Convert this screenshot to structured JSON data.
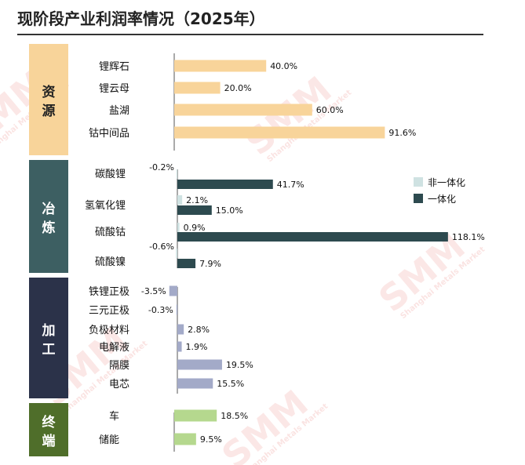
{
  "title": "现阶段产业利润率情况（2025年）",
  "watermark": {
    "main": "SMM",
    "sub": "Shanghai Metals Market"
  },
  "chart_data": {
    "type": "bar",
    "orientation": "horizontal",
    "title": "现阶段产业利润率情况（2025年）",
    "unit": "%",
    "legend": {
      "position": "right",
      "entries": [
        "非一体化",
        "一体化"
      ]
    },
    "colors": {
      "资源": "#f8d49a",
      "冶炼_非一体化": "#cfe2e2",
      "冶炼_一体化": "#2d4a4f",
      "加工": "#a3aac8",
      "终端": "#b5d88e",
      "seg_资源": "#f8d49a",
      "seg_冶炼": "#3d5f62",
      "seg_加工": "#2b3249",
      "seg_终端": "#4f6e2a"
    },
    "segments": [
      {
        "name": "资源",
        "chars": [
          "资",
          "源"
        ],
        "items": [
          {
            "category": "锂辉石",
            "value": 40.0,
            "label": "40.0%"
          },
          {
            "category": "锂云母",
            "value": 20.0,
            "label": "20.0%"
          },
          {
            "category": "盐湖",
            "value": 60.0,
            "label": "60.0%"
          },
          {
            "category": "钴中间品",
            "value": 91.6,
            "label": "91.6%"
          }
        ]
      },
      {
        "name": "冶炼",
        "chars": [
          "冶",
          "炼"
        ],
        "series": [
          "非一体化",
          "一体化"
        ],
        "items": [
          {
            "category": "碳酸锂",
            "values": [
              -0.2,
              41.7
            ],
            "labels": [
              "-0.2%",
              "41.7%"
            ]
          },
          {
            "category": "氢氧化锂",
            "values": [
              2.1,
              15.0
            ],
            "labels": [
              "2.1%",
              "15.0%"
            ]
          },
          {
            "category": "硫酸钴",
            "values": [
              0.9,
              118.1
            ],
            "labels": [
              "0.9%",
              "118.1%"
            ]
          },
          {
            "category": "硫酸镍",
            "values": [
              -0.6,
              7.9
            ],
            "labels": [
              "-0.6%",
              "7.9%"
            ]
          }
        ]
      },
      {
        "name": "加工",
        "chars": [
          "加",
          "工"
        ],
        "items": [
          {
            "category": "铁锂正极",
            "value": -3.5,
            "label": "-3.5%"
          },
          {
            "category": "三元正极",
            "value": -0.3,
            "label": "-0.3%"
          },
          {
            "category": "负极材料",
            "value": 2.8,
            "label": "2.8%"
          },
          {
            "category": "电解液",
            "value": 1.9,
            "label": "1.9%"
          },
          {
            "category": "隔膜",
            "value": 19.5,
            "label": "19.5%"
          },
          {
            "category": "电芯",
            "value": 15.5,
            "label": "15.5%"
          }
        ]
      },
      {
        "name": "终端",
        "chars": [
          "终",
          "端"
        ],
        "items": [
          {
            "category": "车",
            "value": 18.5,
            "label": "18.5%"
          },
          {
            "category": "储能",
            "value": 9.5,
            "label": "9.5%"
          }
        ]
      }
    ]
  }
}
